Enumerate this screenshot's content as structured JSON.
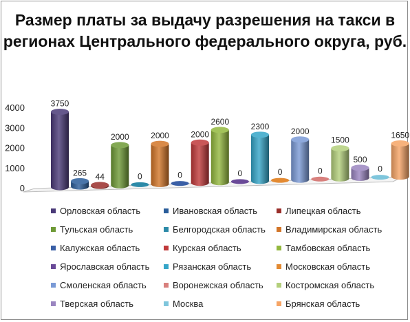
{
  "chart_data": {
    "type": "bar",
    "title": "Размер платы за выдачу разрешения на такси в регионах Центрального федерального округа, руб.",
    "xlabel": "",
    "ylabel": "",
    "ylim": [
      0,
      4000
    ],
    "yticks": [
      "0",
      "1000",
      "2000",
      "3000",
      "4000"
    ],
    "grid": false,
    "legend_position": "bottom",
    "categories": [
      "Орловская область",
      "Ивановская область",
      "Липецкая область",
      "Тульская область",
      "Белгородская область",
      "Владимирская область",
      "Калужская область",
      "Курская область",
      "Тамбовская область",
      "Ярославская область",
      "Рязанская область",
      "Московская область",
      "Смоленская область",
      "Воронежская область",
      "Костромская область",
      "Тверская область",
      "Москва",
      "Брянская область"
    ],
    "values": [
      3750,
      265,
      44,
      2000,
      0,
      2000,
      0,
      2000,
      2600,
      0,
      2300,
      0,
      2000,
      0,
      1500,
      500,
      0,
      1650
    ],
    "data_labels": [
      "3750",
      "265",
      "44",
      "2000",
      "0",
      "2000",
      "0",
      "2000",
      "2600",
      "0",
      "2300",
      "0",
      "2000",
      "0",
      "1500",
      "500",
      "0",
      "1650"
    ],
    "colors": [
      "#4a3a78",
      "#2a5d9a",
      "#9a2e2a",
      "#6e9a36",
      "#2c8aa8",
      "#d27528",
      "#3a5fa6",
      "#c0393a",
      "#93b83e",
      "#6a4a98",
      "#35a5c8",
      "#e38a32",
      "#7a9ad6",
      "#d8807d",
      "#b3cf7b",
      "#9a85c0",
      "#7fc6dc",
      "#f6a465"
    ]
  }
}
